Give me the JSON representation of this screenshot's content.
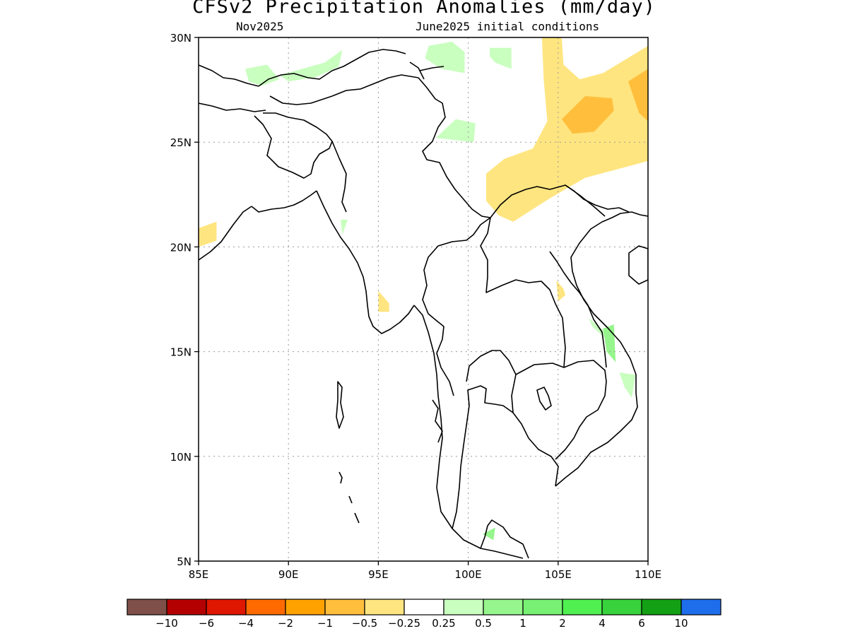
{
  "title": "CFSv2 Precipitation Anomalies (mm/day)",
  "subtitle_left": "Nov2025",
  "subtitle_right": "June2025 initial conditions",
  "map": {
    "lon_range": [
      85,
      110
    ],
    "lat_range": [
      5,
      30
    ],
    "lon_ticks": [
      {
        "value": 85,
        "label": "85E"
      },
      {
        "value": 90,
        "label": "90E"
      },
      {
        "value": 95,
        "label": "95E"
      },
      {
        "value": 100,
        "label": "100E"
      },
      {
        "value": 105,
        "label": "105E"
      },
      {
        "value": 110,
        "label": "110E"
      }
    ],
    "lat_ticks": [
      {
        "value": 30,
        "label": "30N"
      },
      {
        "value": 25,
        "label": "25N"
      },
      {
        "value": 20,
        "label": "20N"
      },
      {
        "value": 15,
        "label": "15N"
      },
      {
        "value": 10,
        "label": "10N"
      },
      {
        "value": 5,
        "label": "5N"
      }
    ],
    "grid": true,
    "anomaly_regions": [
      {
        "name": "south-china-dry",
        "color": "#ffe580",
        "points": [
          [
            104.1,
            30
          ],
          [
            105.2,
            30
          ],
          [
            105.3,
            28.7
          ],
          [
            106.2,
            28
          ],
          [
            107.5,
            28.3
          ],
          [
            110,
            29.6
          ],
          [
            110,
            24.1
          ],
          [
            106.5,
            23.3
          ],
          [
            104.5,
            22.3
          ],
          [
            102.5,
            21.2
          ],
          [
            101.7,
            21.5
          ],
          [
            101,
            22.2
          ],
          [
            101,
            23.5
          ],
          [
            102,
            24.2
          ],
          [
            103.6,
            24.7
          ],
          [
            104.4,
            26
          ],
          [
            104.2,
            28
          ],
          [
            104.1,
            30
          ]
        ]
      },
      {
        "name": "guizhou-drier-core",
        "color": "#ffbf3c",
        "points": [
          [
            105.2,
            26.1
          ],
          [
            106.5,
            27.2
          ],
          [
            108,
            27.1
          ],
          [
            108.1,
            26.5
          ],
          [
            107,
            25.5
          ],
          [
            105.8,
            25.4
          ]
        ]
      },
      {
        "name": "hunan-drier-core",
        "color": "#ffbf3c",
        "points": [
          [
            108.9,
            27.9
          ],
          [
            110,
            28.5
          ],
          [
            110,
            26
          ],
          [
            109.5,
            26.4
          ]
        ]
      },
      {
        "name": "bay-of-bengal-dry",
        "color": "#ffe580",
        "points": [
          [
            85,
            20
          ],
          [
            85,
            20.9
          ],
          [
            86,
            21.2
          ],
          [
            86,
            20.3
          ]
        ]
      },
      {
        "name": "myanmar-dry-streak",
        "color": "#ffe580",
        "points": [
          [
            95,
            17.9
          ],
          [
            95,
            16.9
          ],
          [
            95.6,
            16.9
          ],
          [
            95.6,
            17.3
          ]
        ]
      },
      {
        "name": "laos-dry-streak",
        "color": "#ffe580",
        "points": [
          [
            104.9,
            18.4
          ],
          [
            105,
            17.4
          ],
          [
            105.4,
            17.7
          ],
          [
            105.3,
            18
          ]
        ]
      },
      {
        "name": "tibet-wet-west",
        "color": "#c9ffbf",
        "points": [
          [
            87.6,
            28.5
          ],
          [
            88.8,
            28.7
          ],
          [
            89.5,
            28
          ],
          [
            88.5,
            27.7
          ],
          [
            87.8,
            27.9
          ]
        ]
      },
      {
        "name": "tibet-wet-central",
        "color": "#c9ffbf",
        "points": [
          [
            89.5,
            28.2
          ],
          [
            92,
            28.8
          ],
          [
            93,
            29.4
          ],
          [
            92.8,
            28.6
          ],
          [
            91.5,
            28.1
          ],
          [
            90,
            27.9
          ]
        ]
      },
      {
        "name": "yunnan-wet-north",
        "color": "#c9ffbf",
        "points": [
          [
            97.8,
            29.6
          ],
          [
            99.1,
            29.8
          ],
          [
            99.8,
            29.3
          ],
          [
            99.8,
            28.3
          ],
          [
            98.5,
            28.5
          ],
          [
            97.6,
            29
          ]
        ]
      },
      {
        "name": "sichuan-wet-small",
        "color": "#c9ffbf",
        "points": [
          [
            101.2,
            29.5
          ],
          [
            102.4,
            29.5
          ],
          [
            102.4,
            28.5
          ],
          [
            101.5,
            28.8
          ],
          [
            101.2,
            29.1
          ]
        ]
      },
      {
        "name": "yunnan-wet-south",
        "color": "#c9ffbf",
        "points": [
          [
            98.2,
            25.2
          ],
          [
            99.3,
            26.1
          ],
          [
            100.4,
            25.9
          ],
          [
            100.3,
            25
          ]
        ]
      },
      {
        "name": "arakan-wet",
        "color": "#c9ffbf",
        "points": [
          [
            92.9,
            21.3
          ],
          [
            93.3,
            21.3
          ],
          [
            93,
            20.6
          ]
        ]
      },
      {
        "name": "vietnam-wet-north",
        "color": "#c9ffbf",
        "points": [
          [
            106.7,
            16.6
          ],
          [
            107.7,
            15.9
          ],
          [
            107.8,
            15.5
          ],
          [
            106.9,
            16.2
          ]
        ]
      },
      {
        "name": "vietnam-wet-mid",
        "color": "#96f58c",
        "points": [
          [
            107.5,
            16.1
          ],
          [
            108.1,
            16.3
          ],
          [
            108.2,
            14.5
          ],
          [
            107.7,
            15
          ]
        ]
      },
      {
        "name": "vietnam-wet-south",
        "color": "#c9ffbf",
        "points": [
          [
            108.4,
            14
          ],
          [
            109.3,
            13.9
          ],
          [
            109.1,
            12.8
          ],
          [
            108.7,
            13.3
          ]
        ]
      },
      {
        "name": "malay-wet-speck",
        "color": "#96f58c",
        "points": [
          [
            100.8,
            6.3
          ],
          [
            101.5,
            6.6
          ],
          [
            101.4,
            6
          ]
        ]
      }
    ]
  },
  "colorbar": {
    "colors": [
      "#7f5049",
      "#b40000",
      "#df1600",
      "#ff6a00",
      "#ffa200",
      "#ffbf3c",
      "#ffe580",
      "#ffffff",
      "#c9ffbf",
      "#96f58c",
      "#78f073",
      "#50f050",
      "#37d23c",
      "#14a014",
      "#1e6eeb"
    ],
    "labels": [
      "−10",
      "−6",
      "−4",
      "−2",
      "−1",
      "−0.5",
      "−0.25",
      "0.25",
      "0.5",
      "1",
      "2",
      "4",
      "6",
      "10"
    ]
  }
}
